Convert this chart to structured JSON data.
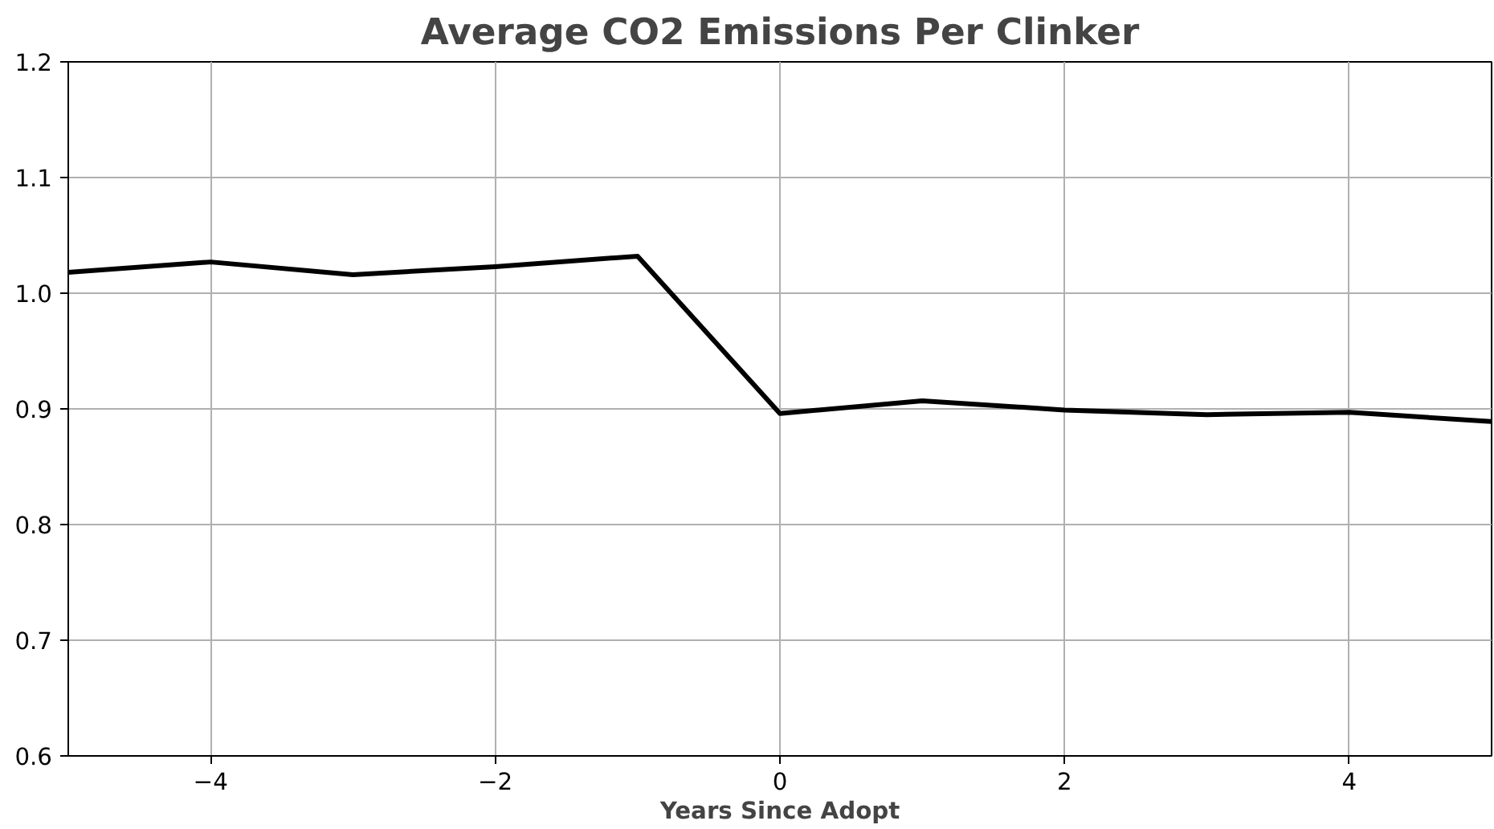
{
  "chart_data": {
    "type": "line",
    "title": "Average CO2 Emissions Per Clinker",
    "xlabel": "Years Since Adopt",
    "x": [
      -5,
      -4,
      -3,
      -2,
      -1,
      0,
      1,
      2,
      3,
      4,
      5
    ],
    "series": [
      {
        "color": "#000000",
        "values": [
          1.018,
          1.027,
          1.016,
          1.023,
          1.032,
          0.896,
          0.907,
          0.899,
          0.895,
          0.897,
          0.889
        ]
      }
    ],
    "xlim": [
      -5,
      5
    ],
    "ylim": [
      0.6,
      1.2
    ],
    "xticks": [
      {
        "value": -4,
        "label": "−4"
      },
      {
        "value": -2,
        "label": "−2"
      },
      0,
      2,
      4
    ],
    "yticks": [
      {
        "value": 0.6,
        "label": "0.6"
      },
      {
        "value": 0.7,
        "label": "0.7"
      },
      {
        "value": 0.8,
        "label": "0.8"
      },
      {
        "value": 0.9,
        "label": "0.9"
      },
      {
        "value": 1.0,
        "label": "1.0"
      },
      {
        "value": 1.1,
        "label": "1.1"
      },
      {
        "value": 1.2,
        "label": "1.2"
      }
    ],
    "grid": true,
    "line_style": "solid",
    "marker": "none"
  }
}
